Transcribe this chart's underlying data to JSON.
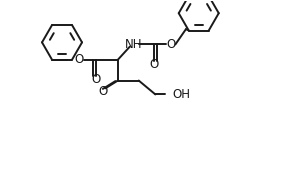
{
  "bg_color": "#ffffff",
  "line_color": "#1a1a1a",
  "line_width": 1.4,
  "font_size": 8.5,
  "fig_width": 2.88,
  "fig_height": 1.82,
  "dpi": 100,
  "xlim": [
    0,
    10
  ],
  "ylim": [
    0,
    6.5
  ]
}
